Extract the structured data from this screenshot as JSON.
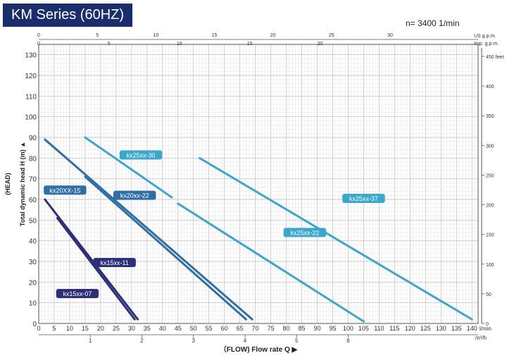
{
  "title": "KM Series (60HZ)",
  "speed": "n= 3400  1/min",
  "colors": {
    "dark": "#2e2f7a",
    "mid": "#2f6fa8",
    "light": "#3aa7cf",
    "grid": "#cfcfcf",
    "title_bg": "#1a2e6e"
  },
  "chart_data": {
    "type": "line",
    "title": "KM Series (60HZ)",
    "ylabel": "Total dynamic head H  (m)",
    "ylabel_outer": "(HEAD)",
    "xlabel": "（FLOW)  Flow rate Q",
    "y_ticks": [
      0,
      10,
      20,
      30,
      40,
      50,
      60,
      70,
      80,
      90,
      100,
      110,
      120,
      130
    ],
    "ylim": [
      0,
      135
    ],
    "x_lmin_ticks": [
      0,
      5,
      10,
      15,
      20,
      25,
      30,
      35,
      40,
      45,
      50,
      55,
      60,
      65,
      70,
      75,
      80,
      85,
      90,
      95,
      100,
      105,
      110,
      115,
      120,
      125,
      130,
      135,
      140
    ],
    "x_lmin_unit": "l/min",
    "xlim": [
      0,
      142
    ],
    "x_m3h_ticks": [
      "1",
      "2",
      "3",
      "4",
      "5",
      "6"
    ],
    "x_m3h_unit": "m³/h",
    "x_usgpm_ticks": [
      "0",
      "5",
      "10",
      "15",
      "20",
      "25",
      "30"
    ],
    "x_usgpm_unit": "US  g.p.m.",
    "x_impgpm_ticks": [
      "0",
      "5",
      "10",
      "15",
      "20"
    ],
    "x_impgpm_unit": "Imp. g.p.m.",
    "y_feet_ticks": [
      "0",
      "50",
      "100",
      "150",
      "200",
      "250",
      "300",
      "350",
      "400",
      "450 feet"
    ],
    "series": [
      {
        "name": "kx15xx-07",
        "color": "dark",
        "points": [
          [
            6,
            51
          ],
          [
            31,
            2
          ]
        ]
      },
      {
        "name": "kx15xx-11",
        "color": "dark",
        "points": [
          [
            2,
            60
          ],
          [
            32,
            2
          ]
        ]
      },
      {
        "name": "kx20XX-15",
        "color": "mid",
        "points": [
          [
            2,
            89
          ],
          [
            69,
            2
          ]
        ]
      },
      {
        "name": "kx20xx-22",
        "color": "mid",
        "points": [
          [
            15,
            71
          ],
          [
            67,
            2
          ]
        ]
      },
      {
        "name": "kx25xx-30",
        "color": "light",
        "points": [
          [
            15,
            90
          ],
          [
            43,
            61
          ]
        ]
      },
      {
        "name": "kx25xx-22",
        "color": "light",
        "points": [
          [
            45,
            58
          ],
          [
            105,
            1
          ]
        ]
      },
      {
        "name": "kx25xx-37",
        "color": "light",
        "points": [
          [
            52,
            80
          ],
          [
            140,
            2
          ]
        ]
      }
    ],
    "labels": [
      {
        "text": "kx15xx-07",
        "x": 12.5,
        "y": 14.5,
        "color": "dark"
      },
      {
        "text": "kx15xx-11",
        "x": 24.5,
        "y": 29.5,
        "color": "dark"
      },
      {
        "text": "kx20XX-15",
        "x": 8.5,
        "y": 64.5,
        "color": "mid"
      },
      {
        "text": "kx20xx-22",
        "x": 31,
        "y": 62,
        "color": "mid"
      },
      {
        "text": "kx25xx-30",
        "x": 33,
        "y": 81.5,
        "color": "light"
      },
      {
        "text": "kx25xx-22",
        "x": 86,
        "y": 44,
        "color": "light"
      },
      {
        "text": "kx25xx-37",
        "x": 105,
        "y": 60.5,
        "color": "light"
      }
    ]
  }
}
